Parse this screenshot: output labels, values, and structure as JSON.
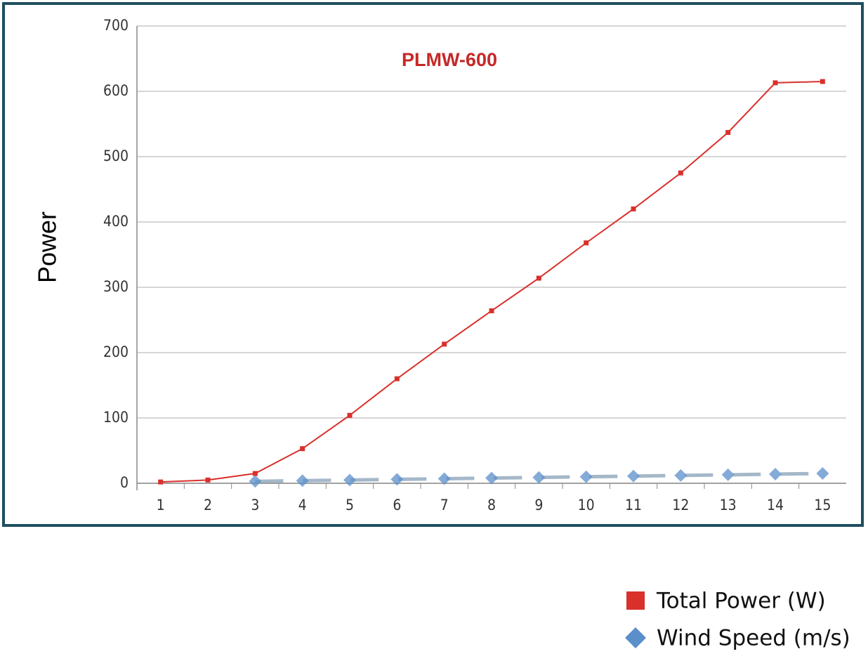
{
  "chart_data": {
    "type": "line",
    "title": "PLMW-600",
    "y_label": "Power",
    "categories": [
      "1",
      "2",
      "3",
      "4",
      "5",
      "6",
      "7",
      "8",
      "9",
      "10",
      "11",
      "12",
      "13",
      "14",
      "15"
    ],
    "series": [
      {
        "name": "Total Power (W)",
        "color": "#d9302c",
        "marker": "square",
        "values": [
          2,
          5,
          15,
          53,
          104,
          160,
          213,
          264,
          314,
          368,
          420,
          475,
          537,
          613,
          615
        ]
      },
      {
        "name": "Wind Speed (m/s)",
        "color": "#5b8fcb",
        "marker": "diamond",
        "values": [
          null,
          null,
          3,
          4,
          5,
          6,
          7,
          8,
          9,
          10,
          11,
          12,
          13,
          14,
          15
        ]
      }
    ],
    "ylim": [
      0,
      700
    ],
    "yticks": [
      0,
      100,
      200,
      300,
      400,
      500,
      600,
      700
    ],
    "grid": true,
    "legend": "bottom-right"
  }
}
